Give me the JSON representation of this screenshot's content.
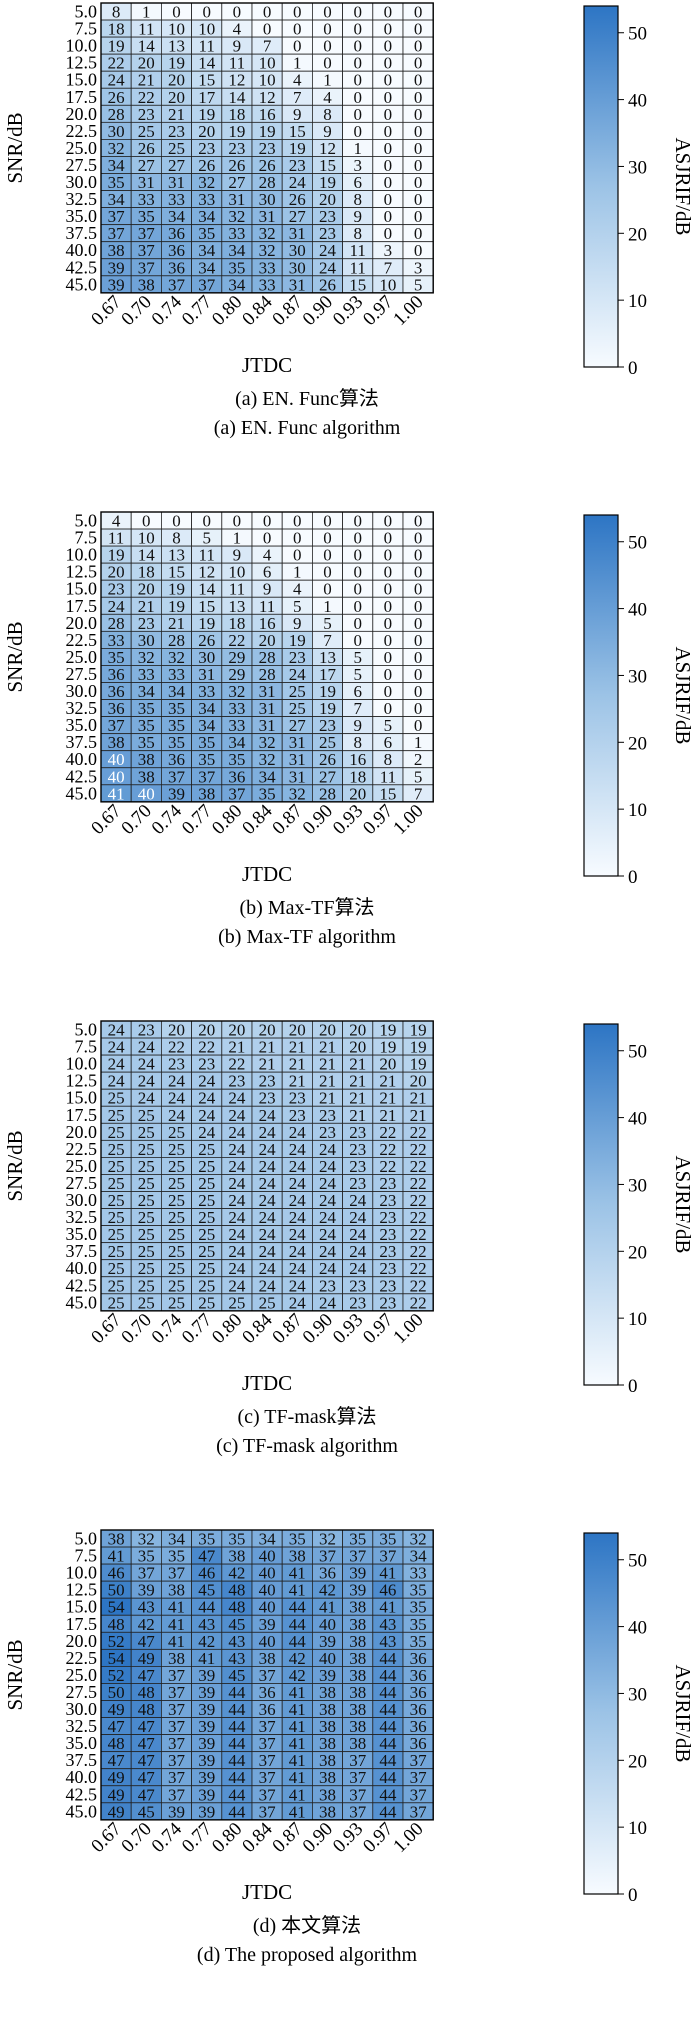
{
  "figure": {
    "panels": [
      {
        "caption_cn": "(a) EN. Func算法",
        "caption_en": "(a) EN. Func algorithm"
      },
      {
        "caption_cn": "(b) Max-TF算法",
        "caption_en": "(b) Max-TF algorithm"
      },
      {
        "caption_cn": "(c) TF-mask算法",
        "caption_en": "(c) TF-mask algorithm"
      },
      {
        "caption_cn": "(d) 本文算法",
        "caption_en": "(d) The proposed algorithm"
      }
    ]
  },
  "chart_data": [
    {
      "type": "heatmap",
      "title": "",
      "xlabel": "JTDC",
      "ylabel": "SNR/dB",
      "colorbar_label": "ASJRIF/dB",
      "colorbar_ticks": [
        0,
        10,
        20,
        30,
        40,
        50
      ],
      "vlim": [
        0,
        54
      ],
      "x": [
        "0.67",
        "0.70",
        "0.74",
        "0.77",
        "0.80",
        "0.84",
        "0.87",
        "0.90",
        "0.93",
        "0.97",
        "1.00"
      ],
      "y": [
        "5.0",
        "7.5",
        "10.0",
        "12.5",
        "15.0",
        "17.5",
        "20.0",
        "22.5",
        "25.0",
        "27.5",
        "30.0",
        "32.5",
        "35.0",
        "37.5",
        "40.0",
        "42.5",
        "45.0"
      ],
      "values": [
        [
          8,
          1,
          0,
          0,
          0,
          0,
          0,
          0,
          0,
          0,
          0
        ],
        [
          18,
          11,
          10,
          10,
          4,
          0,
          0,
          0,
          0,
          0,
          0
        ],
        [
          19,
          14,
          13,
          11,
          9,
          7,
          0,
          0,
          0,
          0,
          0
        ],
        [
          22,
          20,
          19,
          14,
          11,
          10,
          1,
          0,
          0,
          0,
          0
        ],
        [
          24,
          21,
          20,
          15,
          12,
          10,
          4,
          1,
          0,
          0,
          0
        ],
        [
          26,
          22,
          20,
          17,
          14,
          12,
          7,
          4,
          0,
          0,
          0
        ],
        [
          28,
          23,
          21,
          19,
          18,
          16,
          9,
          8,
          0,
          0,
          0
        ],
        [
          30,
          25,
          23,
          20,
          19,
          19,
          15,
          9,
          0,
          0,
          0
        ],
        [
          32,
          26,
          25,
          23,
          23,
          23,
          19,
          12,
          1,
          0,
          0
        ],
        [
          34,
          27,
          27,
          26,
          26,
          26,
          23,
          15,
          3,
          0,
          0
        ],
        [
          35,
          31,
          31,
          32,
          27,
          28,
          24,
          19,
          6,
          0,
          0
        ],
        [
          34,
          33,
          33,
          33,
          31,
          30,
          26,
          20,
          8,
          0,
          0
        ],
        [
          37,
          35,
          34,
          34,
          32,
          31,
          27,
          23,
          9,
          0,
          0
        ],
        [
          37,
          37,
          36,
          35,
          33,
          32,
          31,
          23,
          8,
          0,
          0
        ],
        [
          38,
          37,
          36,
          34,
          34,
          32,
          30,
          24,
          11,
          3,
          0
        ],
        [
          39,
          37,
          36,
          34,
          35,
          33,
          30,
          24,
          11,
          7,
          3
        ],
        [
          39,
          38,
          37,
          37,
          34,
          33,
          31,
          26,
          15,
          10,
          5
        ]
      ]
    },
    {
      "type": "heatmap",
      "title": "",
      "xlabel": "JTDC",
      "ylabel": "SNR/dB",
      "colorbar_label": "ASJRIF/dB",
      "colorbar_ticks": [
        0,
        10,
        20,
        30,
        40,
        50
      ],
      "vlim": [
        0,
        54
      ],
      "x": [
        "0.67",
        "0.70",
        "0.74",
        "0.77",
        "0.80",
        "0.84",
        "0.87",
        "0.90",
        "0.93",
        "0.97",
        "1.00"
      ],
      "y": [
        "5.0",
        "7.5",
        "10.0",
        "12.5",
        "15.0",
        "17.5",
        "20.0",
        "22.5",
        "25.0",
        "27.5",
        "30.0",
        "32.5",
        "35.0",
        "37.5",
        "40.0",
        "42.5",
        "45.0"
      ],
      "values": [
        [
          4,
          0,
          0,
          0,
          0,
          0,
          0,
          0,
          0,
          0,
          0
        ],
        [
          11,
          10,
          8,
          5,
          1,
          0,
          0,
          0,
          0,
          0,
          0
        ],
        [
          19,
          14,
          13,
          11,
          9,
          4,
          0,
          0,
          0,
          0,
          0
        ],
        [
          20,
          18,
          15,
          12,
          10,
          6,
          1,
          0,
          0,
          0,
          0
        ],
        [
          23,
          20,
          19,
          14,
          11,
          9,
          4,
          0,
          0,
          0,
          0
        ],
        [
          24,
          21,
          19,
          15,
          13,
          11,
          5,
          1,
          0,
          0,
          0
        ],
        [
          28,
          23,
          21,
          19,
          18,
          16,
          9,
          5,
          0,
          0,
          0
        ],
        [
          33,
          30,
          28,
          26,
          22,
          20,
          19,
          7,
          0,
          0,
          0
        ],
        [
          35,
          32,
          32,
          30,
          29,
          28,
          23,
          13,
          5,
          0,
          0
        ],
        [
          36,
          33,
          33,
          31,
          29,
          28,
          24,
          17,
          5,
          0,
          0
        ],
        [
          36,
          34,
          34,
          33,
          32,
          31,
          25,
          19,
          6,
          0,
          0
        ],
        [
          36,
          35,
          35,
          34,
          33,
          31,
          25,
          19,
          7,
          0,
          0
        ],
        [
          37,
          35,
          35,
          34,
          33,
          31,
          27,
          23,
          9,
          5,
          0
        ],
        [
          38,
          35,
          35,
          35,
          34,
          32,
          31,
          25,
          8,
          6,
          1
        ],
        [
          40,
          38,
          36,
          35,
          35,
          32,
          31,
          26,
          16,
          8,
          2
        ],
        [
          40,
          38,
          37,
          37,
          36,
          34,
          31,
          27,
          18,
          11,
          5
        ],
        [
          41,
          40,
          39,
          38,
          37,
          35,
          32,
          28,
          20,
          15,
          7
        ]
      ]
    },
    {
      "type": "heatmap",
      "title": "",
      "xlabel": "JTDC",
      "ylabel": "SNR/dB",
      "colorbar_label": "ASJRIF/dB",
      "colorbar_ticks": [
        0,
        10,
        20,
        30,
        40,
        50
      ],
      "vlim": [
        0,
        54
      ],
      "x": [
        "0.67",
        "0.70",
        "0.74",
        "0.77",
        "0.80",
        "0.84",
        "0.87",
        "0.90",
        "0.93",
        "0.97",
        "1.00"
      ],
      "y": [
        "5.0",
        "7.5",
        "10.0",
        "12.5",
        "15.0",
        "17.5",
        "20.0",
        "22.5",
        "25.0",
        "27.5",
        "30.0",
        "32.5",
        "35.0",
        "37.5",
        "40.0",
        "42.5",
        "45.0"
      ],
      "values": [
        [
          24,
          23,
          20,
          20,
          20,
          20,
          20,
          20,
          20,
          19,
          19
        ],
        [
          24,
          24,
          22,
          22,
          21,
          21,
          21,
          21,
          20,
          19,
          19
        ],
        [
          24,
          24,
          23,
          23,
          22,
          21,
          21,
          21,
          21,
          20,
          19
        ],
        [
          24,
          24,
          24,
          24,
          23,
          23,
          21,
          21,
          21,
          21,
          20
        ],
        [
          25,
          24,
          24,
          24,
          24,
          23,
          23,
          21,
          21,
          21,
          21
        ],
        [
          25,
          25,
          24,
          24,
          24,
          24,
          23,
          23,
          21,
          21,
          21
        ],
        [
          25,
          25,
          25,
          24,
          24,
          24,
          24,
          23,
          23,
          22,
          22
        ],
        [
          25,
          25,
          25,
          25,
          24,
          24,
          24,
          24,
          23,
          22,
          22
        ],
        [
          25,
          25,
          25,
          25,
          24,
          24,
          24,
          24,
          23,
          22,
          22
        ],
        [
          25,
          25,
          25,
          25,
          24,
          24,
          24,
          24,
          23,
          23,
          22
        ],
        [
          25,
          25,
          25,
          25,
          24,
          24,
          24,
          24,
          24,
          23,
          22
        ],
        [
          25,
          25,
          25,
          25,
          24,
          24,
          24,
          24,
          24,
          23,
          22
        ],
        [
          25,
          25,
          25,
          25,
          24,
          24,
          24,
          24,
          24,
          23,
          22
        ],
        [
          25,
          25,
          25,
          25,
          24,
          24,
          24,
          24,
          24,
          23,
          22
        ],
        [
          25,
          25,
          25,
          25,
          24,
          24,
          24,
          24,
          24,
          23,
          22
        ],
        [
          25,
          25,
          25,
          25,
          24,
          24,
          24,
          23,
          23,
          23,
          22
        ],
        [
          25,
          25,
          25,
          25,
          25,
          25,
          24,
          24,
          23,
          23,
          22
        ]
      ]
    },
    {
      "type": "heatmap",
      "title": "",
      "xlabel": "JTDC",
      "ylabel": "SNR/dB",
      "colorbar_label": "ASJRIF/dB",
      "colorbar_ticks": [
        0,
        10,
        20,
        30,
        40,
        50
      ],
      "vlim": [
        0,
        54
      ],
      "x": [
        "0.67",
        "0.70",
        "0.74",
        "0.77",
        "0.80",
        "0.84",
        "0.87",
        "0.90",
        "0.93",
        "0.97",
        "1.00"
      ],
      "y": [
        "5.0",
        "7.5",
        "10.0",
        "12.5",
        "15.0",
        "17.5",
        "20.0",
        "22.5",
        "25.0",
        "27.5",
        "30.0",
        "32.5",
        "35.0",
        "37.5",
        "40.0",
        "42.5",
        "45.0"
      ],
      "values": [
        [
          38,
          32,
          34,
          35,
          35,
          34,
          35,
          32,
          35,
          35,
          32
        ],
        [
          41,
          35,
          35,
          47,
          38,
          40,
          38,
          37,
          37,
          37,
          34
        ],
        [
          46,
          37,
          37,
          46,
          42,
          40,
          41,
          36,
          39,
          41,
          33
        ],
        [
          50,
          39,
          38,
          45,
          48,
          40,
          41,
          42,
          39,
          46,
          35
        ],
        [
          54,
          43,
          41,
          44,
          48,
          40,
          44,
          41,
          38,
          41,
          35
        ],
        [
          48,
          42,
          41,
          43,
          45,
          39,
          44,
          40,
          38,
          43,
          35
        ],
        [
          52,
          47,
          41,
          42,
          43,
          40,
          44,
          39,
          38,
          43,
          35
        ],
        [
          54,
          49,
          38,
          41,
          43,
          38,
          42,
          40,
          38,
          44,
          36
        ],
        [
          52,
          47,
          37,
          39,
          45,
          37,
          42,
          39,
          38,
          44,
          36
        ],
        [
          50,
          48,
          37,
          39,
          44,
          36,
          41,
          38,
          38,
          44,
          36
        ],
        [
          49,
          48,
          37,
          39,
          44,
          36,
          41,
          38,
          38,
          44,
          36
        ],
        [
          47,
          47,
          37,
          39,
          44,
          37,
          41,
          38,
          38,
          44,
          36
        ],
        [
          48,
          47,
          37,
          39,
          44,
          37,
          41,
          38,
          38,
          44,
          36
        ],
        [
          47,
          47,
          37,
          39,
          44,
          37,
          41,
          38,
          37,
          44,
          37
        ],
        [
          49,
          47,
          37,
          39,
          44,
          37,
          41,
          38,
          37,
          44,
          37
        ],
        [
          49,
          47,
          37,
          39,
          44,
          37,
          41,
          38,
          37,
          44,
          37
        ],
        [
          49,
          45,
          39,
          39,
          44,
          37,
          41,
          38,
          37,
          44,
          37
        ]
      ]
    }
  ]
}
